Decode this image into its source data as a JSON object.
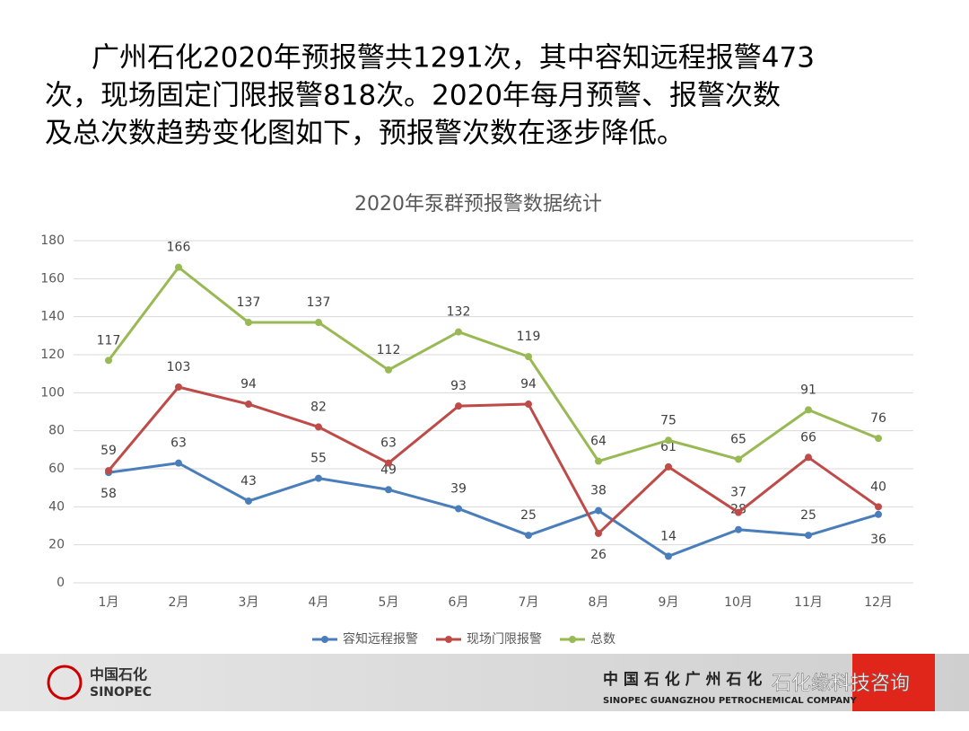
{
  "slide": {
    "text_lines": [
      "广州石化2020年预报警共1291次，其中容知远程报警473",
      "次，现场固定门限报警818次。2020年每月预警、报警次数",
      "及总次数趋势变化图如下，预报警次数在逐步降低。"
    ]
  },
  "chart_data": {
    "type": "line",
    "title": "2020年泵群预报警数据统计",
    "categories": [
      "1月",
      "2月",
      "3月",
      "4月",
      "5月",
      "6月",
      "7月",
      "8月",
      "9月",
      "10月",
      "11月",
      "12月"
    ],
    "series": [
      {
        "name": "容知远程报警",
        "color": "#4a7ebb",
        "values": [
          58,
          63,
          43,
          55,
          49,
          39,
          25,
          38,
          14,
          28,
          25,
          36
        ]
      },
      {
        "name": "现场门限报警",
        "color": "#be4b48",
        "values": [
          59,
          103,
          94,
          82,
          63,
          93,
          94,
          26,
          61,
          37,
          66,
          40
        ]
      },
      {
        "name": "总数",
        "color": "#98b954",
        "values": [
          117,
          166,
          137,
          137,
          112,
          132,
          119,
          64,
          75,
          65,
          91,
          76
        ]
      }
    ],
    "ylim": [
      0,
      180
    ],
    "yticks": [
      0,
      20,
      40,
      60,
      80,
      100,
      120,
      140,
      160,
      180
    ],
    "grid": true,
    "legend": "bottom"
  },
  "footer": {
    "logo_cn": "中国石化",
    "logo_en": "SINOPEC",
    "company_cn": "中 国 石 化 广 州 石 化",
    "company_en": "SINOPEC GUANGZHOU PETROCHEMICAL COMPANY",
    "watermark": "石化缘科技咨询"
  }
}
